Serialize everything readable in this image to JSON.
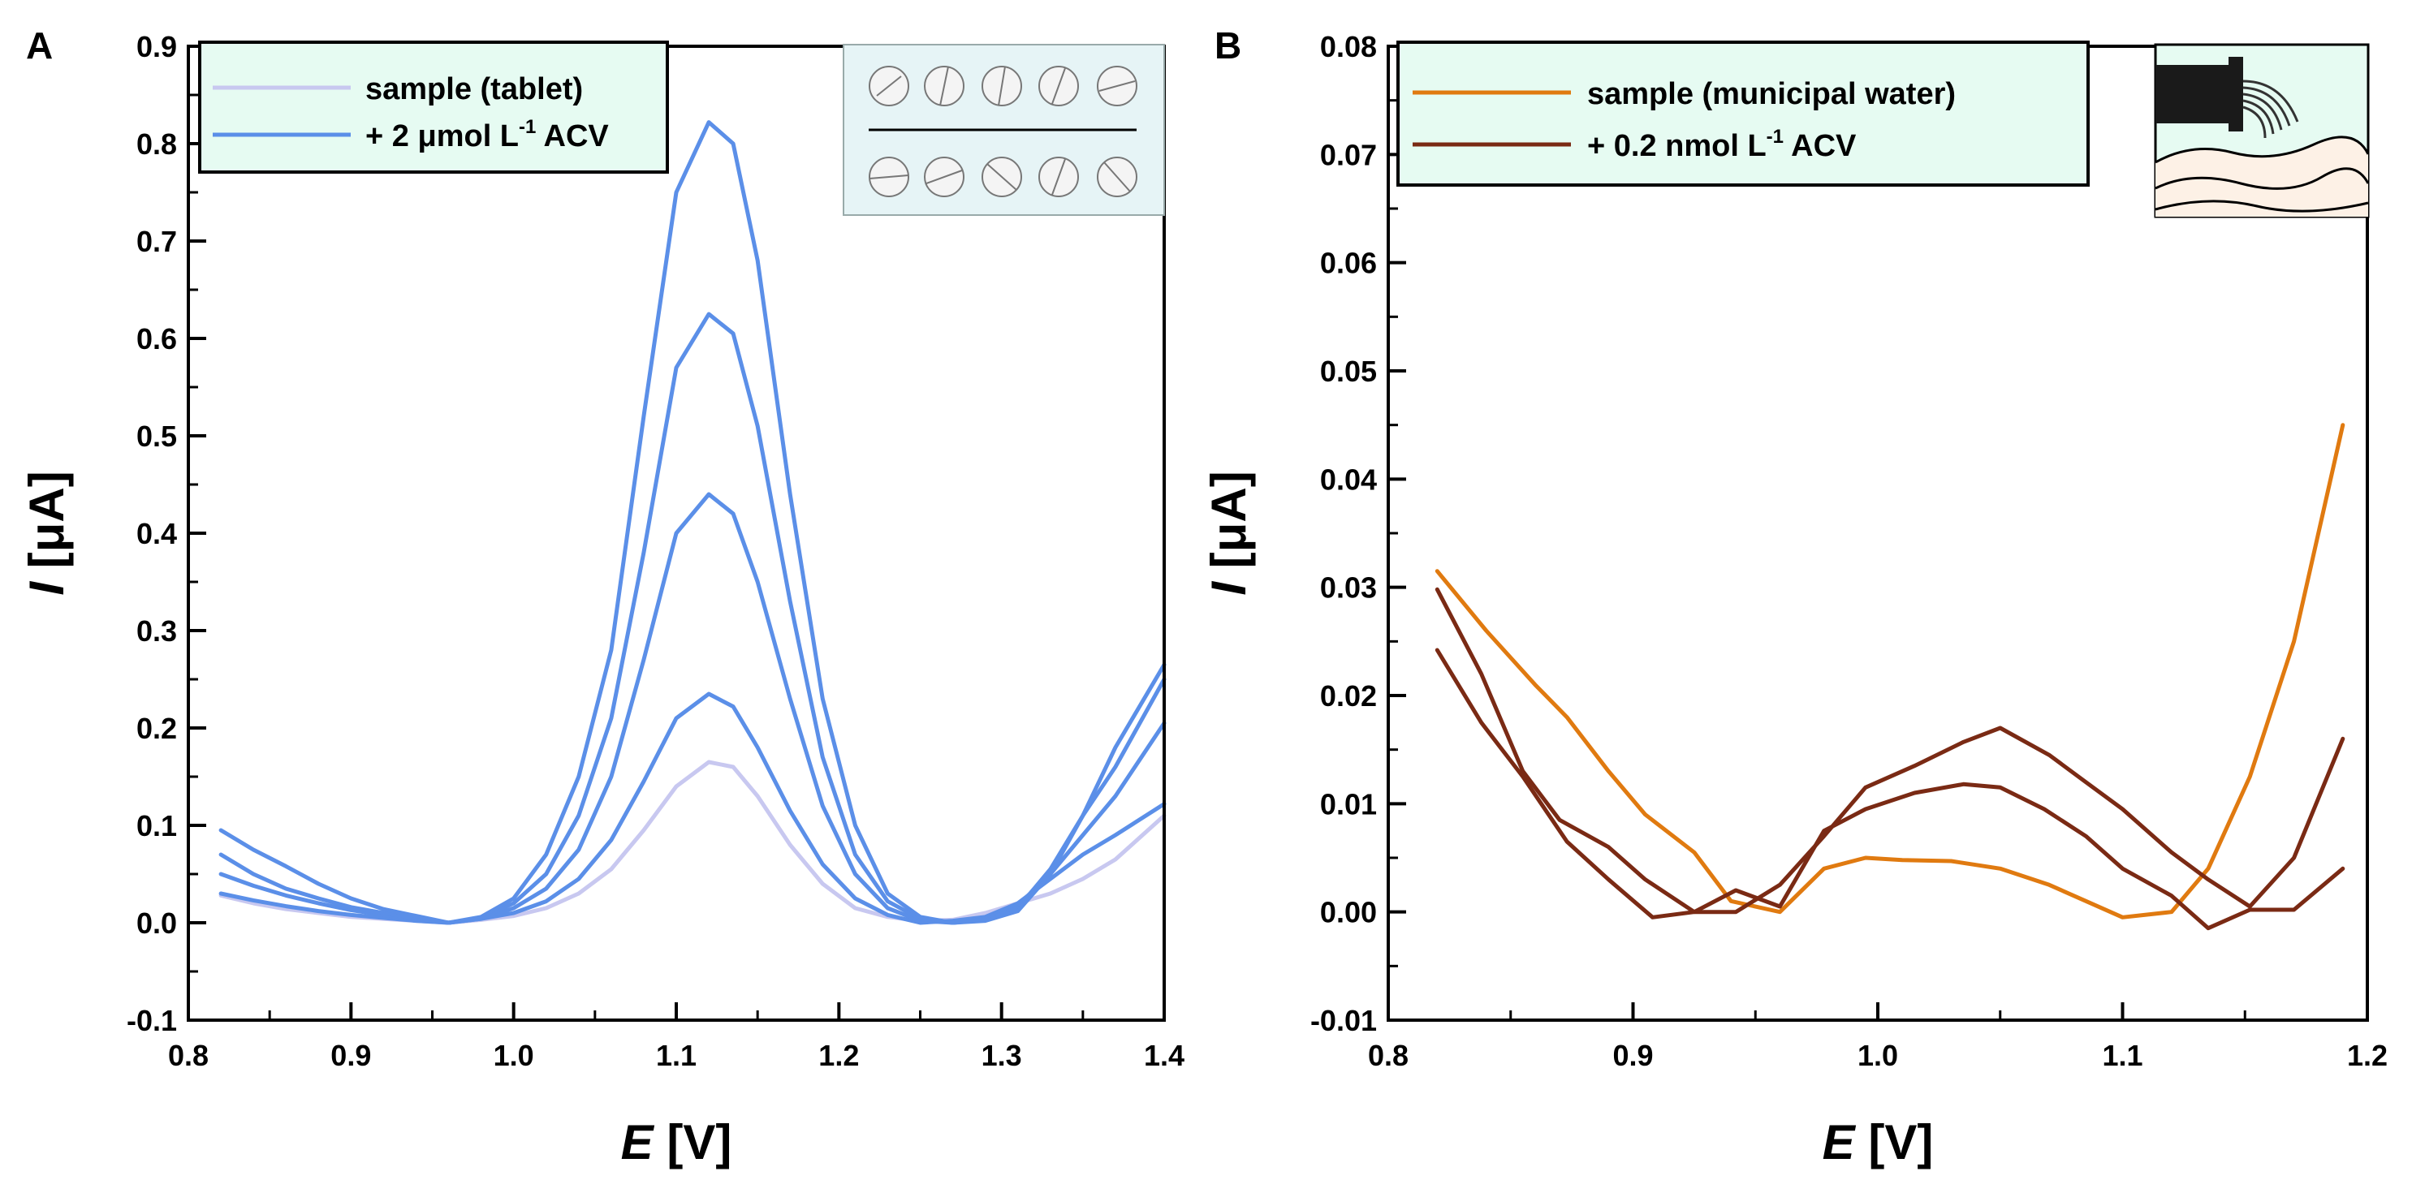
{
  "chart_data": [
    {
      "panel": "A",
      "type": "line",
      "xlabel": {
        "var": "E",
        "unit": "[V]"
      },
      "ylabel": {
        "var": "I",
        "unit": "[μA]"
      },
      "xlim": [
        0.8,
        1.4
      ],
      "ylim": [
        -0.1,
        0.9
      ],
      "xticks": [
        "0.8",
        "0.9",
        "1.0",
        "1.1",
        "1.2",
        "1.3",
        "1.4"
      ],
      "yticks": [
        "-0.1",
        "0.0",
        "0.1",
        "0.2",
        "0.3",
        "0.4",
        "0.5",
        "0.6",
        "0.7",
        "0.8",
        "0.9"
      ],
      "legend": [
        {
          "label": "sample (tablet)",
          "prefix": "sample (tablet)",
          "sup": "",
          "suffix": "",
          "color": "#c8c8f0"
        },
        {
          "label": "+ 2 μmol L-1 ACV",
          "prefix": "+ 2 μmol L",
          "sup": "-1",
          "suffix": " ACV",
          "color": "#5b8fe8"
        }
      ],
      "series": [
        {
          "name": "sample (tablet)",
          "color": "#c8c8f0",
          "x": [
            0.82,
            0.84,
            0.86,
            0.88,
            0.9,
            0.92,
            0.94,
            0.96,
            0.98,
            1.0,
            1.02,
            1.04,
            1.06,
            1.08,
            1.1,
            1.12,
            1.135,
            1.15,
            1.17,
            1.19,
            1.21,
            1.23,
            1.25,
            1.27,
            1.29,
            1.31,
            1.33,
            1.35,
            1.37,
            1.4
          ],
          "y": [
            0.028,
            0.02,
            0.014,
            0.01,
            0.006,
            0.004,
            0.002,
            0.0,
            0.003,
            0.007,
            0.015,
            0.03,
            0.055,
            0.095,
            0.14,
            0.165,
            0.16,
            0.13,
            0.08,
            0.04,
            0.015,
            0.006,
            0.002,
            0.003,
            0.01,
            0.02,
            0.03,
            0.045,
            0.065,
            0.11
          ]
        },
        {
          "name": "+ 2 μmol L-1 ACV (1)",
          "color": "#5b8fe8",
          "x": [
            0.82,
            0.84,
            0.86,
            0.88,
            0.9,
            0.92,
            0.94,
            0.96,
            0.98,
            1.0,
            1.02,
            1.04,
            1.06,
            1.08,
            1.1,
            1.12,
            1.135,
            1.15,
            1.17,
            1.19,
            1.21,
            1.23,
            1.25,
            1.27,
            1.29,
            1.31,
            1.33,
            1.35,
            1.37,
            1.4
          ],
          "y": [
            0.03,
            0.023,
            0.017,
            0.012,
            0.008,
            0.005,
            0.002,
            0.0,
            0.004,
            0.01,
            0.022,
            0.045,
            0.085,
            0.145,
            0.21,
            0.235,
            0.222,
            0.18,
            0.115,
            0.06,
            0.025,
            0.008,
            0.0,
            0.002,
            0.006,
            0.02,
            0.045,
            0.07,
            0.09,
            0.122
          ]
        },
        {
          "name": "+ 2 μmol L-1 ACV (2)",
          "color": "#5b8fe8",
          "x": [
            0.82,
            0.84,
            0.86,
            0.88,
            0.9,
            0.92,
            0.94,
            0.96,
            0.98,
            1.0,
            1.02,
            1.04,
            1.06,
            1.08,
            1.1,
            1.12,
            1.135,
            1.15,
            1.17,
            1.19,
            1.21,
            1.23,
            1.25,
            1.27,
            1.29,
            1.31,
            1.33,
            1.35,
            1.37,
            1.4
          ],
          "y": [
            0.05,
            0.038,
            0.028,
            0.02,
            0.013,
            0.008,
            0.004,
            0.0,
            0.004,
            0.015,
            0.035,
            0.075,
            0.15,
            0.27,
            0.4,
            0.44,
            0.42,
            0.35,
            0.23,
            0.12,
            0.05,
            0.015,
            0.002,
            0.0,
            0.004,
            0.018,
            0.05,
            0.09,
            0.13,
            0.205
          ]
        },
        {
          "name": "+ 2 μmol L-1 ACV (3)",
          "color": "#5b8fe8",
          "x": [
            0.82,
            0.84,
            0.86,
            0.88,
            0.9,
            0.92,
            0.94,
            0.96,
            0.98,
            1.0,
            1.02,
            1.04,
            1.06,
            1.08,
            1.1,
            1.12,
            1.135,
            1.15,
            1.17,
            1.19,
            1.21,
            1.23,
            1.25,
            1.27,
            1.29,
            1.31,
            1.33,
            1.35,
            1.37,
            1.4
          ],
          "y": [
            0.07,
            0.05,
            0.035,
            0.025,
            0.016,
            0.01,
            0.005,
            0.0,
            0.005,
            0.02,
            0.05,
            0.11,
            0.21,
            0.38,
            0.57,
            0.625,
            0.605,
            0.51,
            0.33,
            0.17,
            0.07,
            0.022,
            0.004,
            0.0,
            0.003,
            0.015,
            0.055,
            0.11,
            0.16,
            0.25
          ]
        },
        {
          "name": "+ 2 μmol L-1 ACV (4)",
          "color": "#5b8fe8",
          "x": [
            0.82,
            0.84,
            0.86,
            0.88,
            0.9,
            0.92,
            0.94,
            0.96,
            0.98,
            1.0,
            1.02,
            1.04,
            1.06,
            1.08,
            1.1,
            1.12,
            1.135,
            1.15,
            1.17,
            1.19,
            1.21,
            1.23,
            1.25,
            1.27,
            1.29,
            1.31,
            1.33,
            1.35,
            1.37,
            1.4
          ],
          "y": [
            0.095,
            0.075,
            0.058,
            0.04,
            0.025,
            0.014,
            0.007,
            0.0,
            0.006,
            0.025,
            0.07,
            0.15,
            0.28,
            0.52,
            0.75,
            0.822,
            0.8,
            0.68,
            0.44,
            0.23,
            0.1,
            0.03,
            0.006,
            0.0,
            0.002,
            0.012,
            0.05,
            0.11,
            0.18,
            0.265
          ]
        }
      ]
    },
    {
      "panel": "B",
      "type": "line",
      "xlabel": {
        "var": "E",
        "unit": "[V]"
      },
      "ylabel": {
        "var": "I",
        "unit": "[μA]"
      },
      "xlim": [
        0.8,
        1.2
      ],
      "ylim": [
        -0.01,
        0.08
      ],
      "xticks": [
        "0.8",
        "0.9",
        "1.0",
        "1.1",
        "1.2"
      ],
      "yticks": [
        "-0.01",
        "0.00",
        "0.01",
        "0.02",
        "0.03",
        "0.04",
        "0.05",
        "0.06",
        "0.07",
        "0.08"
      ],
      "legend": [
        {
          "label": "sample (municipal water)",
          "prefix": "sample (municipal water)",
          "sup": "",
          "suffix": "",
          "color": "#e07a10"
        },
        {
          "label": "+ 0.2 nmol L-1 ACV",
          "prefix": "+ 0.2 nmol L",
          "sup": "-1",
          "suffix": " ACV",
          "color": "#7a2a14"
        }
      ],
      "series": [
        {
          "name": "sample (municipal water)",
          "color": "#e07a10",
          "x": [
            0.82,
            0.84,
            0.86,
            0.873,
            0.89,
            0.905,
            0.925,
            0.94,
            0.96,
            0.978,
            0.995,
            1.01,
            1.03,
            1.05,
            1.07,
            1.085,
            1.1,
            1.12,
            1.135,
            1.152,
            1.17,
            1.19
          ],
          "y": [
            0.0315,
            0.026,
            0.021,
            0.018,
            0.013,
            0.009,
            0.0055,
            0.001,
            0.0,
            0.004,
            0.005,
            0.0048,
            0.0047,
            0.004,
            0.0025,
            0.001,
            -0.0005,
            0.0,
            0.004,
            0.0125,
            0.025,
            0.045
          ]
        },
        {
          "name": "+ 0.2 nmol L-1 ACV (1)",
          "color": "#7a2a14",
          "x": [
            0.82,
            0.838,
            0.855,
            0.87,
            0.89,
            0.905,
            0.925,
            0.942,
            0.96,
            0.978,
            0.995,
            1.015,
            1.035,
            1.05,
            1.07,
            1.085,
            1.1,
            1.12,
            1.135,
            1.152,
            1.17,
            1.19
          ],
          "y": [
            0.0298,
            0.022,
            0.013,
            0.0085,
            0.006,
            0.003,
            0.0,
            0.0,
            0.0025,
            0.007,
            0.0115,
            0.0135,
            0.0157,
            0.017,
            0.0145,
            0.012,
            0.0095,
            0.0055,
            0.003,
            0.0005,
            0.005,
            0.016
          ]
        },
        {
          "name": "+ 0.2 nmol L-1 ACV (2)",
          "color": "#7a2a14",
          "x": [
            0.82,
            0.838,
            0.855,
            0.873,
            0.89,
            0.908,
            0.925,
            0.942,
            0.96,
            0.978,
            0.995,
            1.015,
            1.035,
            1.05,
            1.068,
            1.085,
            1.1,
            1.12,
            1.135,
            1.152,
            1.17,
            1.19
          ],
          "y": [
            0.0242,
            0.0175,
            0.0125,
            0.0065,
            0.003,
            -0.0005,
            0.0,
            0.002,
            0.0005,
            0.0075,
            0.0095,
            0.011,
            0.0118,
            0.0115,
            0.0095,
            0.007,
            0.004,
            0.0015,
            -0.0015,
            0.0002,
            0.0002,
            0.004
          ]
        }
      ]
    }
  ]
}
